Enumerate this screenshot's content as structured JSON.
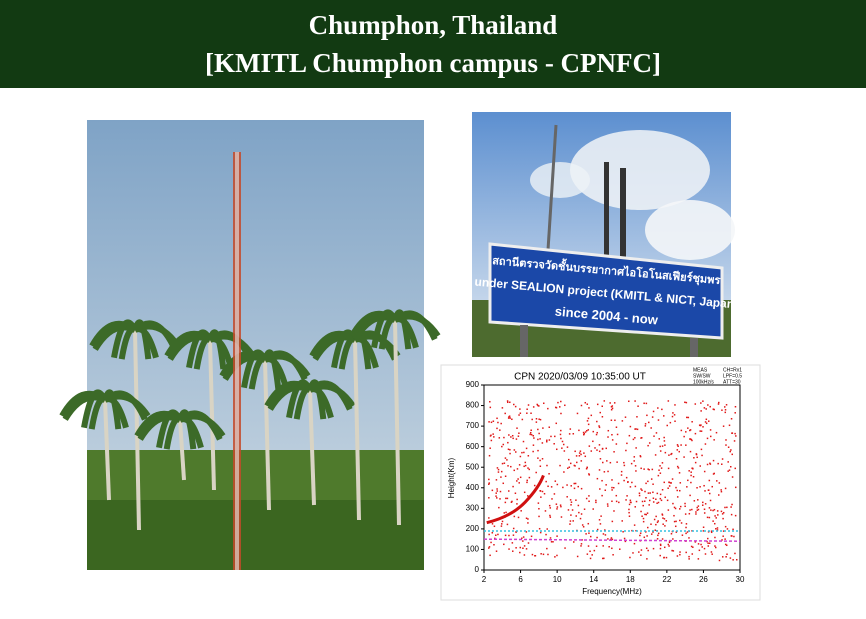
{
  "header": {
    "title_lines": [
      "Chumphon, Thailand",
      "[KMITL Chumphon campus - CPNFC]"
    ]
  },
  "sign_photo": {
    "lines": [
      "สถานีตรวจวัดชั้นบรรยากาศไอโอโนสเฟียร์ชุมพร",
      "under SEALION project (KMITL & NICT, Japan)",
      "since 2004 - now"
    ]
  },
  "ionogram": {
    "title": "CPN 2020/03/09 10:35:00 UT",
    "x_label": "Frequency(MHz)",
    "y_label": "Height(Km)",
    "xticks": [
      2,
      6,
      10,
      14,
      18,
      22,
      26,
      30
    ],
    "yticks": [
      0,
      100,
      200,
      300,
      400,
      500,
      600,
      700,
      800,
      900
    ],
    "info": [
      "MEAS",
      "SW/SW",
      "100kHz/s",
      "CH=Rx1",
      "LPF=0.5",
      "ATT=30"
    ]
  }
}
